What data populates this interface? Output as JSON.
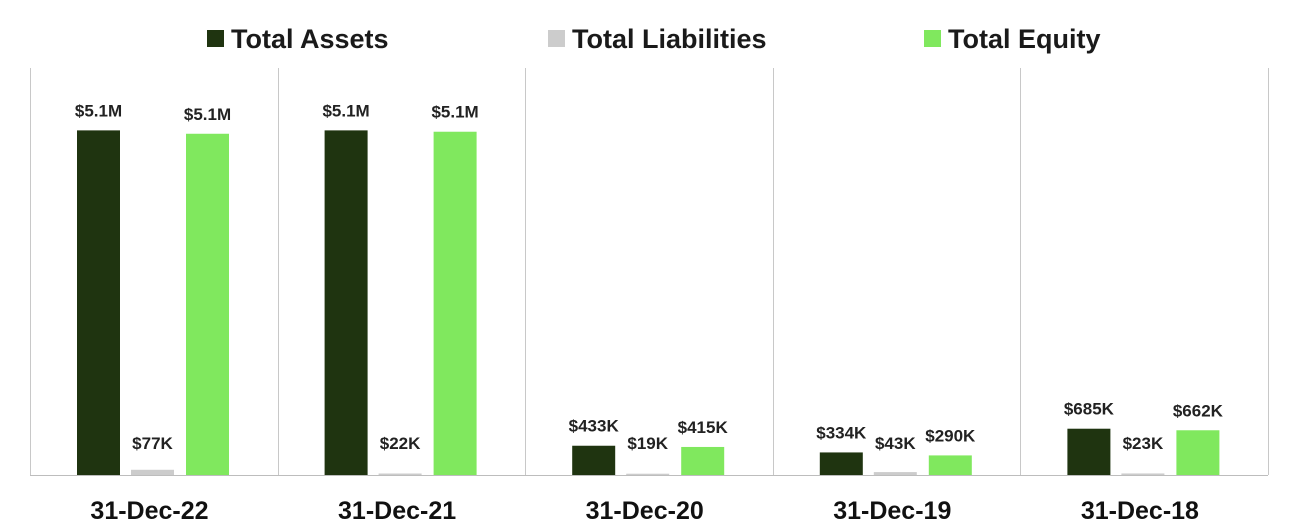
{
  "chart_data": {
    "type": "bar",
    "title": "",
    "xlabel": "",
    "ylabel": "",
    "categories": [
      "31-Dec-22",
      "31-Dec-21",
      "31-Dec-20",
      "31-Dec-19",
      "31-Dec-18"
    ],
    "series": [
      {
        "name": "Total Assets",
        "color": "#1f3410",
        "values": [
          5100000,
          5100000,
          433000,
          334000,
          685000
        ],
        "labels": [
          "$5.1M",
          "$5.1M",
          "$433K",
          "$334K",
          "$685K"
        ]
      },
      {
        "name": "Total Liabilities",
        "color": "#cccccc",
        "values": [
          77000,
          22000,
          19000,
          43000,
          23000
        ],
        "labels": [
          "$77K",
          "$22K",
          "$19K",
          "$43K",
          "$23K"
        ]
      },
      {
        "name": "Total Equity",
        "color": "#80e85e",
        "values": [
          5050000,
          5080000,
          415000,
          290000,
          662000
        ],
        "labels": [
          "$5.1M",
          "$5.1M",
          "$415K",
          "$290K",
          "$662K"
        ]
      }
    ],
    "ylim": [
      0,
      5150000
    ],
    "grid": false,
    "legend_position": "top-center"
  }
}
